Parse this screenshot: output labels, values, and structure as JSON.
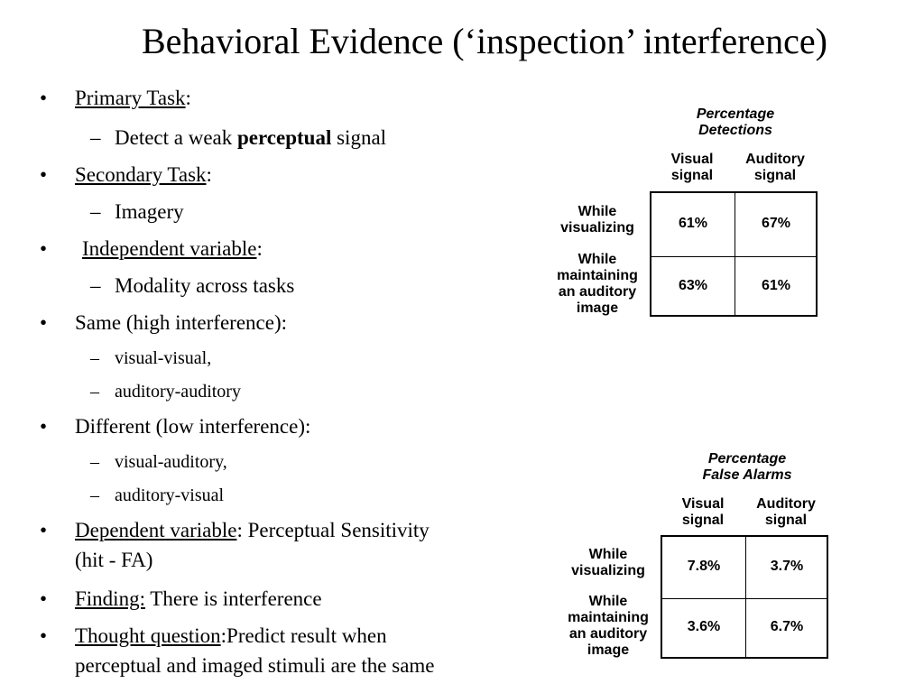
{
  "title": "Behavioral Evidence (‘inspection’ interference)",
  "bullets": {
    "primary_task_label": "Primary Task",
    "primary_task_colon": ":",
    "detect_pre": "Detect a weak ",
    "detect_bold": "perceptual",
    "detect_post": " signal",
    "secondary_task_label": "Secondary Task",
    "secondary_task_colon": ":",
    "imagery": "Imagery",
    "independent_label": "Independent variable",
    "independent_colon": ":",
    "modality": "Modality across tasks",
    "same": "Same (high interference):",
    "visual_visual": "visual-visual,",
    "auditory_auditory": "auditory-auditory",
    "different": "Different (low interference):",
    "visual_auditory": "visual-auditory,",
    "auditory_visual": "auditory-visual",
    "dependent_label": "Dependent variable",
    "dependent_rest": ": Perceptual Sensitivity",
    "dependent_line2": "(hit - FA)",
    "finding_label": "Finding:",
    "finding_rest": " There is interference",
    "thought_label": "Thought question",
    "thought_rest": ":Predict result when",
    "thought_line2": "perceptual and imaged stimuli are the same",
    "bullet_char": "•",
    "dash_char": "–"
  },
  "table1": {
    "caption_line1": "Percentage",
    "caption_line2": "Detections",
    "col1_line1": "Visual",
    "col1_line2": "signal",
    "col2_line1": "Auditory",
    "col2_line2": "signal",
    "row1_line1": "While",
    "row1_line2": "visualizing",
    "row2_line1": "While",
    "row2_line2": "maintaining",
    "row2_line3": "an auditory",
    "row2_line4": "image",
    "r1c1": "61%",
    "r1c2": "67%",
    "r2c1": "63%",
    "r2c2": "61%"
  },
  "table2": {
    "caption_line1": "Percentage",
    "caption_line2": "False Alarms",
    "col1_line1": "Visual",
    "col1_line2": "signal",
    "col2_line1": "Auditory",
    "col2_line2": "signal",
    "row1_line1": "While",
    "row1_line2": "visualizing",
    "row2_line1": "While",
    "row2_line2": "maintaining",
    "row2_line3": "an auditory",
    "row2_line4": "image",
    "r1c1": "7.8%",
    "r1c2": "3.7%",
    "r2c1": "3.6%",
    "r2c2": "6.7%"
  }
}
